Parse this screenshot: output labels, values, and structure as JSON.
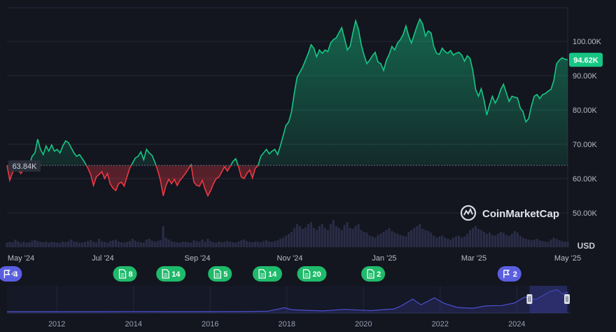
{
  "chart_data": {
    "type": "area",
    "title": "",
    "currency_label": "USD",
    "watermark": "CoinMarketCap",
    "baseline": {
      "value": 63840,
      "label": "63.84K"
    },
    "current": {
      "value": 94620,
      "label": "94.62K"
    },
    "y_axis": {
      "min": 40000,
      "max": 110000,
      "ticks": [
        "100.00K",
        "90.00K",
        "80.00K",
        "70.00K",
        "60.00K",
        "50.00K"
      ],
      "tick_values": [
        100000,
        90000,
        80000,
        70000,
        60000,
        50000
      ]
    },
    "x_axis": {
      "ticks": [
        "May '24",
        "Jul '24",
        "Sep '24",
        "Nov '24",
        "Jan '25",
        "Mar '25",
        "May '25"
      ]
    },
    "series": [
      {
        "unit": "USD",
        "x_start": "2024-05-01",
        "x_end": "2025-05-02",
        "values": [
          63840,
          59500,
          61800,
          63000,
          62500,
          61500,
          62800,
          63500,
          64000,
          66500,
          67500,
          71500,
          68500,
          67000,
          69500,
          68000,
          69800,
          68000,
          68500,
          67500,
          69500,
          71000,
          70500,
          69000,
          67500,
          66500,
          67000,
          65800,
          64500,
          63000,
          61200,
          58000,
          60500,
          61200,
          62000,
          60000,
          61500,
          58500,
          57200,
          56500,
          58500,
          59000,
          57800,
          60500,
          63000,
          64500,
          66000,
          66500,
          67800,
          65500,
          68500,
          67500,
          66800,
          64800,
          62500,
          59500,
          55000,
          58000,
          59800,
          58500,
          59800,
          58000,
          59500,
          60500,
          61500,
          62800,
          64000,
          59000,
          58000,
          57800,
          59500,
          57000,
          55000,
          56500,
          58500,
          60000,
          60500,
          62000,
          63500,
          62200,
          63500,
          65000,
          65800,
          63500,
          60500,
          60000,
          61500,
          62500,
          60200,
          63000,
          63800,
          66500,
          67500,
          68500,
          67200,
          68000,
          68500,
          67000,
          69500,
          72500,
          75500,
          76500,
          79500,
          85000,
          89500,
          91000,
          92500,
          94500,
          96500,
          99000,
          98000,
          95500,
          97500,
          96500,
          97500,
          97000,
          99500,
          100500,
          101000,
          102500,
          104000,
          100800,
          97500,
          98500,
          102500,
          106000,
          103500,
          99000,
          96000,
          93500,
          94500,
          95800,
          96800,
          94000,
          93500,
          91500,
          94500,
          96200,
          98500,
          97500,
          99500,
          100500,
          102000,
          104500,
          101500,
          99500,
          102000,
          104500,
          106500,
          105000,
          101500,
          103000,
          102500,
          98500,
          96500,
          96200,
          98000,
          97000,
          96500,
          97300,
          96000,
          96500,
          96800,
          96000,
          94200,
          95800,
          95000,
          91500,
          86000,
          84000,
          86200,
          83000,
          78500,
          81500,
          84000,
          82000,
          83500,
          86000,
          87500,
          85000,
          82500,
          84000,
          83700,
          83500,
          80500,
          79500,
          76500,
          77500,
          81200,
          84000,
          84500,
          83300,
          84500,
          84800,
          85500,
          86000,
          88500,
          93500,
          94500,
          95200,
          94800,
          94620
        ],
        "volume": [
          0.12,
          0.14,
          0.13,
          0.2,
          0.15,
          0.11,
          0.14,
          0.12,
          0.13,
          0.17,
          0.19,
          0.16,
          0.14,
          0.13,
          0.15,
          0.12,
          0.14,
          0.13,
          0.12,
          0.11,
          0.15,
          0.13,
          0.16,
          0.2,
          0.15,
          0.14,
          0.12,
          0.13,
          0.14,
          0.16,
          0.19,
          0.14,
          0.13,
          0.22,
          0.15,
          0.14,
          0.12,
          0.16,
          0.18,
          0.2,
          0.15,
          0.13,
          0.12,
          0.14,
          0.16,
          0.22,
          0.17,
          0.14,
          0.13,
          0.12,
          0.2,
          0.22,
          0.17,
          0.15,
          0.16,
          0.18,
          0.55,
          0.25,
          0.2,
          0.16,
          0.14,
          0.13,
          0.12,
          0.15,
          0.14,
          0.13,
          0.12,
          0.18,
          0.16,
          0.14,
          0.2,
          0.14,
          0.22,
          0.16,
          0.13,
          0.12,
          0.15,
          0.13,
          0.14,
          0.16,
          0.14,
          0.13,
          0.12,
          0.15,
          0.18,
          0.2,
          0.16,
          0.14,
          0.13,
          0.15,
          0.14,
          0.13,
          0.16,
          0.18,
          0.15,
          0.14,
          0.16,
          0.18,
          0.22,
          0.25,
          0.3,
          0.35,
          0.4,
          0.5,
          0.6,
          0.55,
          0.48,
          0.52,
          0.6,
          0.65,
          0.5,
          0.45,
          0.55,
          0.6,
          0.5,
          0.45,
          0.6,
          0.7,
          0.55,
          0.5,
          0.45,
          0.58,
          0.65,
          0.5,
          0.48,
          0.55,
          0.6,
          0.45,
          0.4,
          0.38,
          0.3,
          0.28,
          0.25,
          0.32,
          0.35,
          0.4,
          0.45,
          0.5,
          0.42,
          0.38,
          0.35,
          0.32,
          0.3,
          0.28,
          0.4,
          0.45,
          0.5,
          0.55,
          0.6,
          0.48,
          0.45,
          0.42,
          0.38,
          0.3,
          0.25,
          0.28,
          0.3,
          0.25,
          0.22,
          0.2,
          0.25,
          0.28,
          0.3,
          0.25,
          0.28,
          0.35,
          0.45,
          0.5,
          0.55,
          0.48,
          0.45,
          0.4,
          0.35,
          0.38,
          0.32,
          0.3,
          0.35,
          0.4,
          0.38,
          0.32,
          0.3,
          0.35,
          0.42,
          0.38,
          0.3,
          0.25,
          0.22,
          0.2,
          0.18,
          0.2,
          0.22,
          0.18,
          0.16,
          0.15,
          0.14,
          0.2,
          0.25,
          0.22,
          0.18,
          0.16,
          0.15,
          0.14
        ]
      }
    ],
    "news_markers": [
      {
        "kind": "flag",
        "count": "4",
        "color": "#5a5fe0",
        "date": "2024-05-03"
      },
      {
        "kind": "doc",
        "count": "8",
        "color": "#1fba6a",
        "date": "2024-07-17"
      },
      {
        "kind": "doc",
        "count": "14",
        "color": "#1fba6a",
        "date": "2024-08-16"
      },
      {
        "kind": "doc",
        "count": "5",
        "color": "#1fba6a",
        "date": "2024-09-17"
      },
      {
        "kind": "doc",
        "count": "14",
        "color": "#1fba6a",
        "date": "2024-10-18"
      },
      {
        "kind": "doc",
        "count": "20",
        "color": "#1fba6a",
        "date": "2024-11-16"
      },
      {
        "kind": "doc",
        "count": "2",
        "color": "#1fba6a",
        "date": "2024-12-26"
      },
      {
        "kind": "flag",
        "count": "2",
        "color": "#5a5fe0",
        "date": "2025-03-25"
      }
    ],
    "navigator": {
      "x_ticks": [
        "2012",
        "2014",
        "2016",
        "2018",
        "2020",
        "2022",
        "2024"
      ],
      "tick_years": [
        2012,
        2014,
        2016,
        2018,
        2020,
        2022,
        2024
      ],
      "range_start_year": 2010.7,
      "range_end_year": 2025.4,
      "selection": [
        2024.33,
        2025.34
      ],
      "history": [
        [
          2010.7,
          0
        ],
        [
          2013.0,
          100
        ],
        [
          2014.0,
          600
        ],
        [
          2015.0,
          250
        ],
        [
          2016.0,
          400
        ],
        [
          2017.0,
          1000
        ],
        [
          2017.5,
          2500
        ],
        [
          2017.95,
          19000
        ],
        [
          2018.1,
          10000
        ],
        [
          2018.5,
          6500
        ],
        [
          2018.95,
          3500
        ],
        [
          2019.5,
          11000
        ],
        [
          2019.95,
          7200
        ],
        [
          2020.2,
          5000
        ],
        [
          2020.5,
          9500
        ],
        [
          2020.8,
          13000
        ],
        [
          2021.0,
          29000
        ],
        [
          2021.28,
          60000
        ],
        [
          2021.5,
          33000
        ],
        [
          2021.85,
          66000
        ],
        [
          2022.1,
          40000
        ],
        [
          2022.45,
          20000
        ],
        [
          2022.85,
          16500
        ],
        [
          2023.2,
          28000
        ],
        [
          2023.6,
          29000
        ],
        [
          2023.95,
          42000
        ],
        [
          2024.2,
          70000
        ],
        [
          2024.5,
          58000
        ],
        [
          2024.85,
          95000
        ],
        [
          2025.05,
          105000
        ],
        [
          2025.2,
          84000
        ],
        [
          2025.34,
          95000
        ]
      ],
      "line_color": "#4b50d0"
    },
    "colors": {
      "up": "#16c784",
      "down": "#ea3943",
      "current_label_bg": "#16c784",
      "baseline_label_bg": "#2b2f3a"
    },
    "grid": true
  }
}
